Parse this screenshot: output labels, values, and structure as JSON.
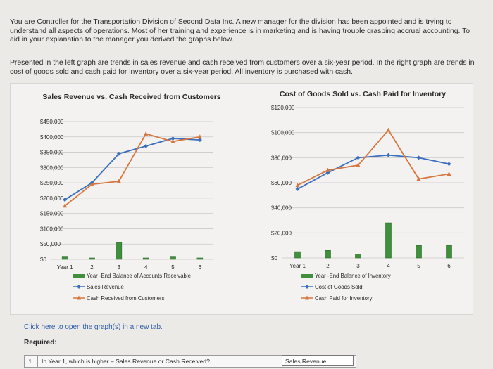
{
  "intro": {
    "paragraph1": "You are Controller for the Transportation Division of Second Data Inc. A new manager for the division has been appointed and is trying to understand all aspects of operations. Most of her training and experience is in marketing and is having trouble grasping accrual accounting. To aid in your explanation to the manager you derived the graphs below.",
    "paragraph2": "Presented in the left graph are trends in sales revenue and cash received from customers over a six-year period. In the right graph are trends in cost of goods sold and cash paid for inventory over a six-year period. All inventory is purchased with cash."
  },
  "colors": {
    "blue_line": "#3a6fbd",
    "orange_line": "#d8763f",
    "bar_green": "#3f8f3c",
    "grid": "#c9c9c9"
  },
  "chart_data": [
    {
      "type": "line",
      "title": "Sales Revenue vs. Cash Received from Customers",
      "categories": [
        "Year 1",
        "2",
        "3",
        "4",
        "5",
        "6"
      ],
      "ylim": [
        0,
        450000
      ],
      "y_ticks": [
        "$450,000",
        "$400,000",
        "$350,000",
        "$300,000",
        "$250,000",
        "$200,000",
        "$150,000",
        "$100,000",
        "$50,000",
        "$0"
      ],
      "tick_values": [
        450000,
        400000,
        350000,
        300000,
        250000,
        200000,
        150000,
        100000,
        50000,
        0
      ],
      "series": [
        {
          "name": "Year -End Balance of Accounts Receivable",
          "kind": "bar",
          "values": [
            10000,
            1000,
            55000,
            1000,
            10000,
            1000
          ]
        },
        {
          "name": "Sales Revenue",
          "kind": "line",
          "marker": "diamond",
          "values": [
            195000,
            250000,
            345000,
            370000,
            395000,
            390000
          ]
        },
        {
          "name": "Cash Received from Customers",
          "kind": "line",
          "marker": "triangle",
          "values": [
            175000,
            245000,
            255000,
            410000,
            385000,
            400000
          ]
        }
      ]
    },
    {
      "type": "line",
      "title": "Cost of Goods Sold vs. Cash Paid for Inventory",
      "categories": [
        "Year 1",
        "2",
        "3",
        "4",
        "5",
        "6"
      ],
      "ylim": [
        0,
        120000
      ],
      "y_ticks": [
        "$120,000",
        "$100,000",
        "$80,000",
        "$60,000",
        "$40,000",
        "$20,000",
        "$0"
      ],
      "tick_values": [
        120000,
        100000,
        80000,
        60000,
        40000,
        20000,
        0
      ],
      "series": [
        {
          "name": "Year -End Balance of Inventory",
          "kind": "bar",
          "values": [
            5000,
            6000,
            3000,
            28000,
            10000,
            10000
          ]
        },
        {
          "name": "Cost of Goods Sold",
          "kind": "line",
          "marker": "diamond",
          "values": [
            55000,
            68000,
            80000,
            82000,
            80000,
            75000
          ]
        },
        {
          "name": "Cash Paid for Inventory",
          "kind": "line",
          "marker": "triangle",
          "values": [
            58000,
            70000,
            74000,
            102000,
            63000,
            67000
          ]
        }
      ]
    }
  ],
  "links": {
    "open_graphs": "Click here to open the graph(s) in a new tab."
  },
  "required": {
    "label": "Required:",
    "question_number": "1.",
    "question_text": "In Year 1, which is higher – Sales Revenue or Cash Received?",
    "answer_value": "Sales Revenue"
  }
}
